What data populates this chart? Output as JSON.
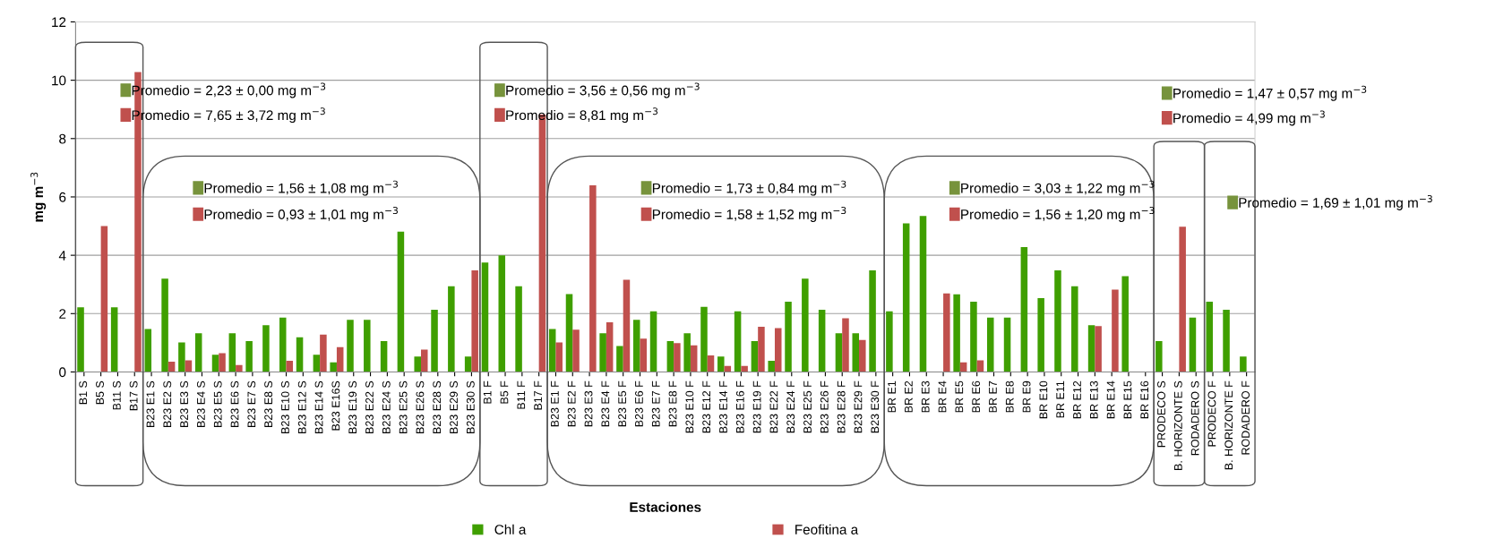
{
  "chart_data": {
    "type": "bar",
    "xlabel": "Estaciones",
    "ylabel": "mg m$^{−3}$",
    "categories": [
      "B1 S",
      "B5 S",
      "B11 S",
      "B17 S",
      "B23 E1 S",
      "B23 E2 S",
      "B23 E3 S",
      "B23 E4 S",
      "B23 E5 S",
      "B23 E6 S",
      "B23 E7 S",
      "B23 E8 S",
      "B23 E10 S",
      "B23 E12 S",
      "B23 E14 S",
      "B23 E16S",
      "B23 E19 S",
      "B23 E22 S",
      "B23 E24 S",
      "B23 E25 S",
      "B23 E26 S",
      "B23 E28 S",
      "B23 E29 S",
      "B23 E30 S",
      "B1 F",
      "B5 F",
      "B11 F",
      "B17 F",
      "B23 E1 F",
      "B23 E2 F",
      "B23 E3 F",
      "B23 E4 F",
      "B23 E5 F",
      "B23 E6 F",
      "B23 E7 F",
      "B23 E8 F",
      "B23 E10 F",
      "B23 E12 F",
      "B23 E14 F",
      "B23 E16 F",
      "B23 E19 F",
      "B23 E22 F",
      "B23 E24 F",
      "B23 E25 F",
      "B23 E26 F",
      "B23 E28 F",
      "B23 E29 F",
      "B23 E30 F",
      "BR E1",
      "BR E2",
      "BR E3",
      "BR E4",
      "BR E5",
      "BR E6",
      "BR E7",
      "BR E8",
      "BR E9",
      "BR E10",
      "BR E11",
      "BR E12",
      "BR E13",
      "BR E14",
      "BR E15",
      "BR E16",
      "PRODECO S",
      "B. HORIZONTE S",
      "RODADERO S",
      "PRODECO F",
      "B. HORIZONTE F",
      "RODADERO F"
    ],
    "series": [
      {
        "name": "Chl a",
        "color": "#3f9f00",
        "values": [
          2.22,
          null,
          2.22,
          null,
          1.47,
          3.2,
          1.01,
          1.33,
          0.59,
          1.33,
          1.06,
          1.6,
          1.86,
          1.19,
          0.59,
          0.33,
          1.79,
          1.79,
          1.06,
          4.81,
          0.53,
          2.13,
          2.94,
          0.53,
          3.75,
          4.0,
          2.94,
          null,
          1.47,
          2.67,
          null,
          1.33,
          0.89,
          1.79,
          2.08,
          1.06,
          1.33,
          2.23,
          0.53,
          2.08,
          1.06,
          0.38,
          2.41,
          3.2,
          2.13,
          1.33,
          1.33,
          3.48,
          2.08,
          5.09,
          5.35,
          null,
          2.66,
          2.41,
          1.86,
          1.86,
          4.28,
          2.53,
          3.48,
          2.94,
          1.6,
          null,
          3.28,
          null,
          1.06,
          null,
          1.86,
          2.41,
          2.13,
          0.53
        ]
      },
      {
        "name": "Feofitina a",
        "color": "#c0504d",
        "values": [
          null,
          5.0,
          null,
          10.28,
          null,
          0.35,
          0.4,
          null,
          0.64,
          0.24,
          null,
          null,
          0.38,
          null,
          1.28,
          0.85,
          null,
          null,
          null,
          null,
          0.77,
          null,
          null,
          3.48,
          null,
          null,
          null,
          8.82,
          1.01,
          1.45,
          6.4,
          1.7,
          3.16,
          1.14,
          null,
          0.99,
          0.91,
          0.57,
          0.21,
          0.21,
          1.55,
          1.5,
          null,
          null,
          null,
          1.84,
          1.1,
          null,
          null,
          null,
          null,
          2.69,
          0.33,
          0.4,
          null,
          null,
          null,
          null,
          null,
          null,
          1.57,
          2.82,
          null,
          null,
          null,
          4.98,
          null,
          null,
          null,
          null
        ]
      }
    ],
    "ylim": [
      0,
      12
    ],
    "yticks": [
      0,
      2,
      4,
      6,
      8,
      10,
      12
    ],
    "grid": "y",
    "legend": "bottom",
    "annotations": [
      "Promedio = 2,23 ± 0,00 mg m$^{−3}$",
      "Promedio = 7,65 ± 3,72 mg m$^{−3}$",
      "Promedio = 1,56 ± 1,08 mg m$^{−3}$",
      "Promedio = 0,93 ± 1,01 mg m$^{−3}$",
      "Promedio = 3,56 ± 0,56 mg m$^{−3}$",
      "Promedio = 8,81 mg m$^{−3}$",
      "Promedio = 1,73 ± 0,84 mg m$^{−3}$",
      "Promedio = 1,58 ± 1,52 mg m$^{−3}$",
      "Promedio = 3,03 ± 1,22 mg m$^{−3}$",
      "Promedio = 1,56 ± 1,20 mg m$^{−3}$",
      "Promedio = 1,47 ± 0,57 mg m$^{−3}$",
      "Promedio = 4,99 mg m$^{−3}$",
      "Promedio = 1,69 ± 1,01 mg m$^{−3}$"
    ]
  }
}
